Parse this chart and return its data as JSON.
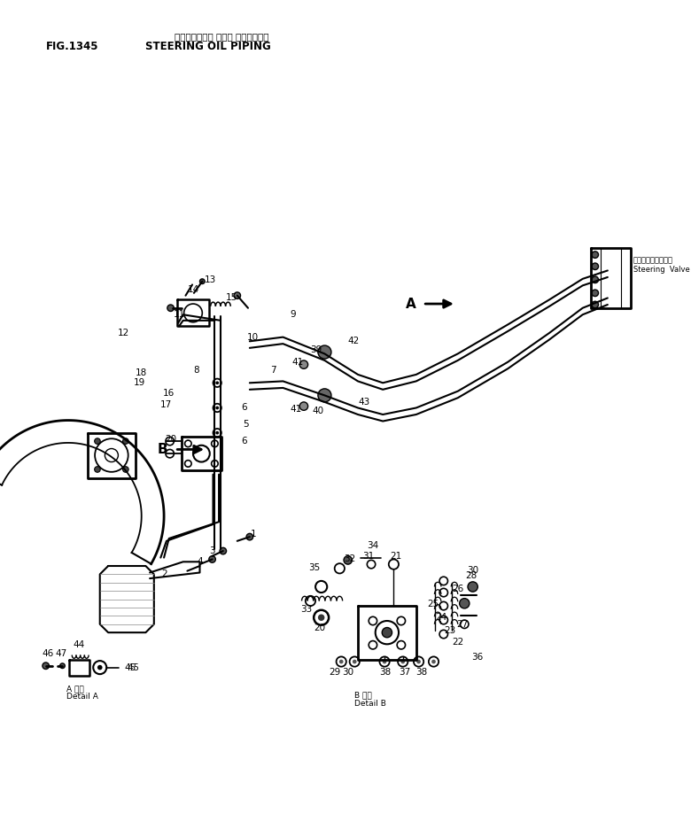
{
  "title_japanese": "ステアリング・ オイル パイピング・",
  "title_english": "STEERING OIL PIPING",
  "fig_number": "FIG.1345",
  "background_color": "#ffffff",
  "line_color": "#000000",
  "text_color": "#000000",
  "detail_a_label_jp": "A 詳細",
  "detail_a_label_en": "Detail A",
  "detail_b_label_jp": "B 詳細",
  "detail_b_label_en": "Detail B",
  "steering_valve_jp": "ステアリングバルブ",
  "steering_valve_en": "Steering  Valve",
  "arrow_a_label": "A",
  "arrow_b_label": "B"
}
